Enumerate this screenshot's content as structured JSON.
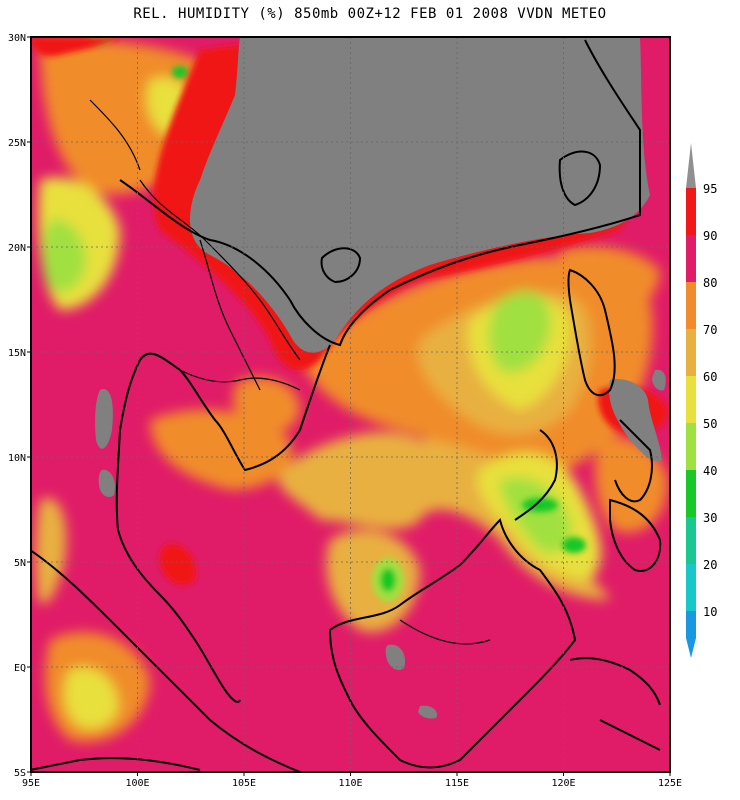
{
  "title": "REL. HUMIDITY (%) 850mb 00Z+12 FEB 01 2008 VVDN METEO",
  "map": {
    "lon_range": [
      95,
      125
    ],
    "lat_range": [
      -5,
      30
    ],
    "lon_ticks": [
      {
        "value": 95,
        "label": "95E"
      },
      {
        "value": 100,
        "label": "100E"
      },
      {
        "value": 105,
        "label": "105E"
      },
      {
        "value": 110,
        "label": "110E"
      },
      {
        "value": 115,
        "label": "115E"
      },
      {
        "value": 120,
        "label": "120E"
      },
      {
        "value": 125,
        "label": "125E"
      }
    ],
    "lat_ticks": [
      {
        "value": 30,
        "label": "30N"
      },
      {
        "value": 25,
        "label": "25N"
      },
      {
        "value": 20,
        "label": "20N"
      },
      {
        "value": 15,
        "label": "15N"
      },
      {
        "value": 10,
        "label": "10N"
      },
      {
        "value": 5,
        "label": "5N"
      },
      {
        "value": 0,
        "label": "EQ"
      },
      {
        "value": -5,
        "label": "5S"
      }
    ],
    "grid": true,
    "missing_color": "#808080"
  },
  "colorbar": {
    "levels": [
      {
        "value": 95,
        "label": "95",
        "color": "#f01818"
      },
      {
        "value": 90,
        "label": "90",
        "color": "#e01c68"
      },
      {
        "value": 80,
        "label": "80",
        "color": "#f08c2c"
      },
      {
        "value": 70,
        "label": "70",
        "color": "#e8b040"
      },
      {
        "value": 60,
        "label": "60",
        "color": "#e8e03c"
      },
      {
        "value": 50,
        "label": "50",
        "color": "#a0e040"
      },
      {
        "value": 40,
        "label": "40",
        "color": "#18c828"
      },
      {
        "value": 30,
        "label": "30",
        "color": "#18c890"
      },
      {
        "value": 20,
        "label": "20",
        "color": "#18c8c8"
      },
      {
        "value": 10,
        "label": "10",
        "color": "#1898e0"
      }
    ],
    "top_arrow_color": "#909090",
    "bottom_arrow_color": "#1898e0"
  }
}
